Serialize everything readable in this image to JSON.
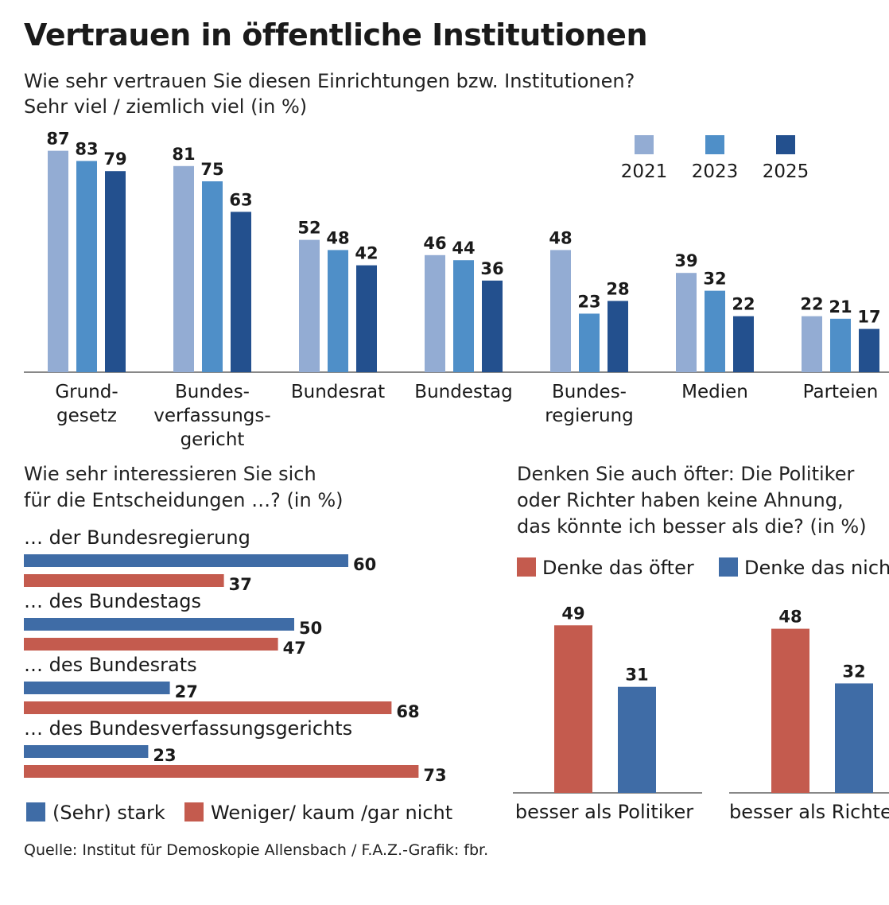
{
  "title": "Vertrauen in öffentliche Institutionen",
  "subtitle_line1": "Wie sehr vertrauen Sie diesen Einrichtungen bzw. Institutionen?",
  "subtitle_line2": "Sehr viel / ziemlich viel (in %)",
  "source": "Quelle: Institut für Demoskopie Allensbach / F.A.Z.-Grafik: fbr.",
  "colors": {
    "y2021": "#93acd3",
    "y2023": "#4f8fc8",
    "y2025": "#23508e",
    "stark": "#3f6ca6",
    "weniger": "#c45b4e",
    "axis": "#888888",
    "text": "#1a1a1a"
  },
  "chart_data": [
    {
      "type": "bar",
      "categories": [
        [
          "Grund-",
          "gesetz"
        ],
        [
          "Bundes-",
          "verfassungs-",
          "gericht"
        ],
        [
          "Bundesrat"
        ],
        [
          "Bundestag"
        ],
        [
          "Bundes-",
          "regierung"
        ],
        [
          "Medien"
        ],
        [
          "Parteien"
        ]
      ],
      "series": [
        {
          "name": "2021",
          "values": [
            87,
            81,
            52,
            46,
            48,
            39,
            22
          ]
        },
        {
          "name": "2023",
          "values": [
            83,
            75,
            48,
            44,
            23,
            32,
            21
          ]
        },
        {
          "name": "2025",
          "values": [
            79,
            63,
            42,
            36,
            28,
            22,
            17
          ]
        }
      ],
      "ylim": [
        0,
        100
      ],
      "legend": "top-right",
      "grid": false
    },
    {
      "type": "bar",
      "orientation": "horizontal",
      "subtitle_line1": "Wie sehr interessieren Sie sich",
      "subtitle_line2": "für die Entscheidungen …? (in %)",
      "categories": [
        "… der Bundesregierung",
        "… des Bundestags",
        "… des Bundesrats",
        "… des Bundesverfassungsgerichts"
      ],
      "series": [
        {
          "name": "(Sehr) stark",
          "values": [
            60,
            50,
            27,
            23
          ]
        },
        {
          "name": "Weniger/ kaum /gar nicht",
          "values": [
            37,
            47,
            68,
            73
          ]
        }
      ],
      "legend": "bottom",
      "grid": false
    },
    {
      "type": "bar",
      "subtitle_line1": "Denken Sie auch öfter: Die Politiker",
      "subtitle_line2": "oder Richter haben keine Ahnung,",
      "subtitle_line3": "das könnte ich besser als die? (in %)",
      "categories": [
        "besser als Politiker",
        "besser als Richter"
      ],
      "series": [
        {
          "name": "Denke das öfter",
          "values": [
            49,
            48
          ]
        },
        {
          "name": "Denke das nicht",
          "values": [
            31,
            32
          ]
        }
      ],
      "legend": "top",
      "grid": false
    }
  ]
}
